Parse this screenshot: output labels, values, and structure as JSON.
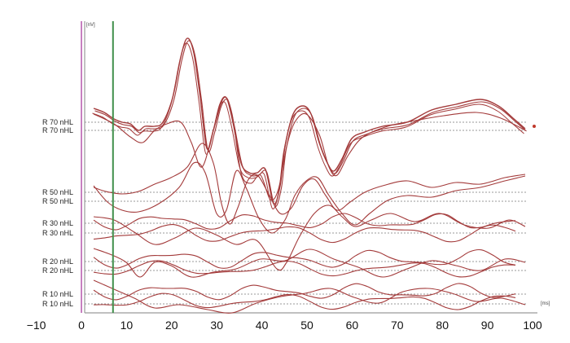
{
  "chart_data": {
    "type": "line",
    "x_unit": "[ms]",
    "y_unit": "[nV]",
    "xlim": [
      -10,
      100
    ],
    "x_ticks": [
      -10,
      0,
      10,
      20,
      30,
      40,
      50,
      60,
      70,
      80,
      90,
      100
    ],
    "markers": [
      {
        "x": 0,
        "color": "#c77fc0"
      },
      {
        "x": 7,
        "color": "#3f8f4a"
      }
    ],
    "trace_color": "#a33a3a",
    "grid": false,
    "rows": [
      {
        "label": "R 70 nHL"
      },
      {
        "label": "R 70 nHL"
      },
      {
        "label": "R 50 nHL"
      },
      {
        "label": "R 50 nHL"
      },
      {
        "label": "R 30 nHL"
      },
      {
        "label": "R 30 nHL"
      },
      {
        "label": "R 20 nHL"
      },
      {
        "label": "R 20 nHL"
      },
      {
        "label": "R 10 nHL"
      },
      {
        "label": "R 10 nHL"
      }
    ]
  }
}
